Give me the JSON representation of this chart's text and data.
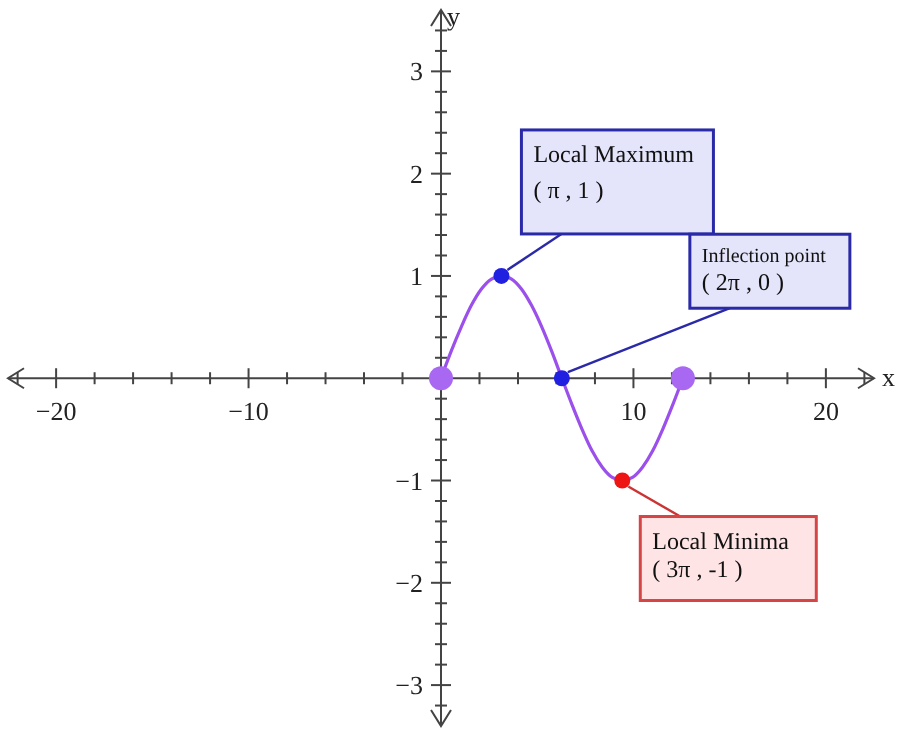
{
  "chart_data": {
    "type": "line",
    "xlabel": "x",
    "ylabel": "y",
    "xlim": [
      -22.5,
      22.5
    ],
    "ylim": [
      -3.4,
      3.6
    ],
    "xticks": [
      {
        "value": -22,
        "label": null
      },
      -20,
      {
        "value": -18,
        "label": null
      },
      {
        "value": -16,
        "label": null
      },
      {
        "value": -14,
        "label": null
      },
      {
        "value": -12,
        "label": null
      },
      -10,
      {
        "value": -8,
        "label": null
      },
      {
        "value": -6,
        "label": null
      },
      {
        "value": -4,
        "label": null
      },
      {
        "value": -2,
        "label": null
      },
      {
        "value": 2,
        "label": null
      },
      {
        "value": 4,
        "label": null
      },
      {
        "value": 6,
        "label": null
      },
      {
        "value": 8,
        "label": null
      },
      10,
      {
        "value": 12,
        "label": null
      },
      {
        "value": 14,
        "label": null
      },
      {
        "value": 16,
        "label": null
      },
      {
        "value": 18,
        "label": null
      },
      20,
      {
        "value": 22,
        "label": null
      }
    ],
    "yticks": [
      {
        "value": -3.2,
        "label": null
      },
      -3,
      {
        "value": -2.8,
        "label": null
      },
      {
        "value": -2.6,
        "label": null
      },
      {
        "value": -2.4,
        "label": null
      },
      {
        "value": -2.2,
        "label": null
      },
      -2,
      {
        "value": -1.8,
        "label": null
      },
      {
        "value": -1.6,
        "label": null
      },
      {
        "value": -1.4,
        "label": null
      },
      {
        "value": -1.2,
        "label": null
      },
      -1,
      {
        "value": -0.8,
        "label": null
      },
      {
        "value": -0.6,
        "label": null
      },
      {
        "value": -0.4,
        "label": null
      },
      {
        "value": -0.2,
        "label": null
      },
      {
        "value": 0.2,
        "label": null
      },
      {
        "value": 0.4,
        "label": null
      },
      {
        "value": 0.6,
        "label": null
      },
      {
        "value": 0.8,
        "label": null
      },
      1,
      {
        "value": 1.2,
        "label": null
      },
      {
        "value": 1.4,
        "label": null
      },
      {
        "value": 1.6,
        "label": null
      },
      {
        "value": 1.8,
        "label": null
      },
      2,
      {
        "value": 2.2,
        "label": null
      },
      {
        "value": 2.4,
        "label": null
      },
      {
        "value": 2.6,
        "label": null
      },
      {
        "value": 2.8,
        "label": null
      },
      3,
      {
        "value": 3.2,
        "label": null
      },
      {
        "value": 3.4,
        "label": null
      }
    ],
    "series": [
      {
        "color": "#9b50ec",
        "marker": "none",
        "x": [
          0,
          0.52,
          1.05,
          1.57,
          2.09,
          2.62,
          3.14,
          3.67,
          4.19,
          4.71,
          5.24,
          5.76,
          6.28,
          6.81,
          7.33,
          7.85,
          8.38,
          8.9,
          9.42,
          9.95,
          10.47,
          11,
          11.52,
          12.04,
          12.57
        ],
        "values": [
          0,
          0.26,
          0.5,
          0.71,
          0.87,
          0.97,
          1,
          0.97,
          0.87,
          0.71,
          0.5,
          0.26,
          0,
          -0.26,
          -0.5,
          -0.71,
          -0.87,
          -0.97,
          -1,
          -0.97,
          -0.87,
          -0.71,
          -0.5,
          -0.26,
          0
        ]
      },
      {
        "type": "scatter",
        "color": "#a868f2",
        "marker": "circle",
        "x": [
          0,
          12.57
        ],
        "values": [
          0,
          0
        ]
      },
      {
        "type": "scatter",
        "colors": [
          "#2020e0",
          "#2020e0",
          "#ee1515"
        ],
        "marker": "circle",
        "x": [
          3.14,
          6.28,
          9.42
        ],
        "values": [
          1,
          0,
          -1
        ]
      }
    ],
    "annotations": [
      {
        "text": "Local Maximum\n( π , 1 )",
        "x": 3.14,
        "y": 1
      },
      {
        "text": "Inflection point\n( 2π , 0 )",
        "x": 6.28,
        "y": 0
      },
      {
        "text": "Local Minima\n( 3π , -1 )",
        "x": 9.42,
        "y": -1
      }
    ]
  }
}
